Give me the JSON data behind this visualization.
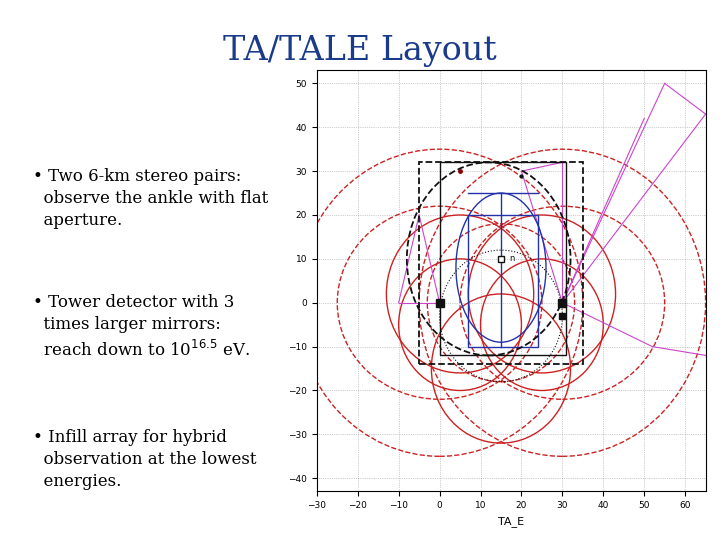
{
  "title": "TA/TALE Layout",
  "title_color": "#1a3a8a",
  "title_fontsize": 24,
  "background_color": "#ffffff",
  "bullet_points": [
    "Two 6-km stereo pairs:\n  observe the ankle with flat\n  aperture.",
    "Tower detector with 3\n  times larger mirrors:\n  reach down to 10$^{16.5}$ eV.",
    "Infill array for hybrid\n  observation at the lowest\n  energies."
  ],
  "bullet_fontsize": 12,
  "plot_xlim": [
    -30,
    65
  ],
  "plot_ylim": [
    -43,
    53
  ],
  "plot_xlabel": "TA_E",
  "plot_xticks": [
    -30,
    -20,
    -10,
    0,
    10,
    20,
    30,
    40,
    50,
    60
  ],
  "plot_yticks": [
    -40,
    -30,
    -20,
    -10,
    0,
    10,
    20,
    30,
    40,
    50
  ],
  "red_color": "#cc2222",
  "blue_color": "#2233aa",
  "magenta_color": "#cc44cc",
  "black_color": "#111111"
}
